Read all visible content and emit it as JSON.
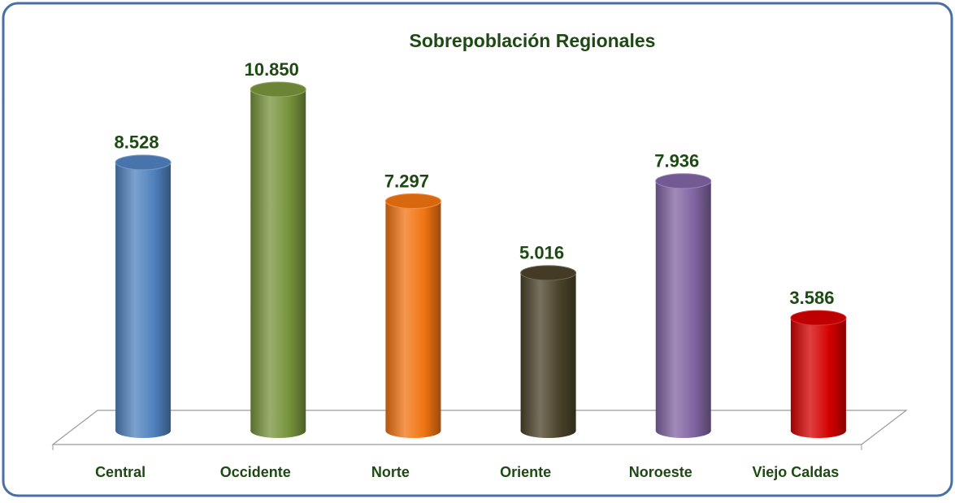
{
  "chart_data": {
    "type": "bar",
    "title": "Sobrepoblación Regionales",
    "categories": [
      "Central",
      "Occidente",
      "Norte",
      "Oriente",
      "Noroeste",
      "Viejo Caldas"
    ],
    "values": [
      8528,
      10850,
      7297,
      5016,
      7936,
      3586
    ],
    "value_labels": [
      "8.528",
      "10.850",
      "7.297",
      "5.016",
      "7.936",
      "3.586"
    ],
    "colors": [
      "#4f81bd",
      "#77933c",
      "#f07412",
      "#4a4229",
      "#8064a2",
      "#d40000"
    ]
  }
}
